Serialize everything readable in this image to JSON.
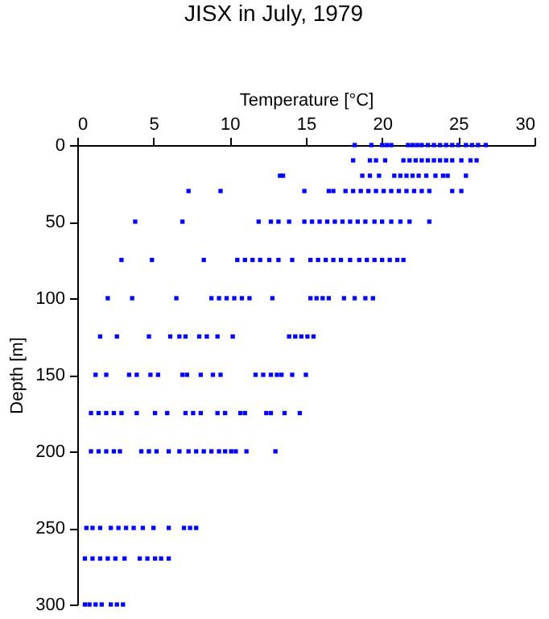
{
  "chart_data": {
    "type": "scatter",
    "title": "JISX in July, 1979",
    "xlabel": "Temperature [°C]",
    "ylabel": "Depth [m]",
    "xlim": [
      0,
      30
    ],
    "xticks": [
      0,
      5,
      10,
      15,
      20,
      25,
      30
    ],
    "ylim": [
      300,
      0
    ],
    "yticks": [
      0,
      50,
      100,
      150,
      200,
      250,
      300
    ],
    "marker": "square",
    "grid": false,
    "series": [
      {
        "color": "#0000ff",
        "x": [
          18.2,
          19.3,
          20.0,
          20.3,
          20.6,
          21.7,
          22.0,
          22.3,
          22.6,
          23.0,
          23.4,
          23.8,
          24.2,
          24.6,
          25.0,
          25.5,
          25.9,
          26.3,
          26.8,
          18.1,
          19.2,
          19.6,
          20.2,
          21.4,
          21.8,
          22.2,
          22.6,
          23.0,
          23.4,
          23.8,
          24.2,
          24.6,
          25.2,
          25.8,
          26.2,
          13.3,
          13.5,
          18.7,
          19.2,
          19.8,
          20.8,
          21.2,
          21.6,
          22.0,
          22.4,
          22.9,
          23.5,
          24.0,
          24.3,
          25.5,
          7.3,
          9.4,
          14.9,
          16.5,
          16.8,
          17.6,
          18.1,
          18.6,
          19.1,
          19.6,
          20.1,
          20.6,
          21.1,
          21.6,
          22.1,
          22.6,
          23.1,
          24.6,
          25.2,
          3.8,
          6.9,
          11.9,
          12.7,
          13.2,
          13.9,
          14.9,
          15.4,
          15.9,
          16.4,
          16.9,
          17.4,
          17.9,
          18.4,
          18.9,
          19.5,
          20.0,
          20.6,
          21.2,
          21.8,
          23.1,
          2.9,
          4.9,
          8.3,
          10.5,
          11.0,
          11.5,
          12.0,
          12.6,
          13.2,
          14.1,
          15.3,
          15.8,
          16.3,
          16.8,
          17.3,
          17.9,
          18.5,
          19.0,
          19.5,
          20.0,
          20.5,
          21.0,
          21.4,
          2.0,
          3.6,
          6.5,
          8.8,
          9.3,
          9.8,
          10.3,
          10.8,
          11.3,
          12.8,
          15.3,
          15.7,
          16.1,
          16.5,
          17.5,
          18.2,
          18.9,
          19.4,
          1.5,
          2.6,
          4.7,
          6.1,
          6.7,
          7.1,
          8.0,
          8.5,
          9.2,
          10.2,
          13.9,
          14.3,
          14.7,
          15.1,
          15.5,
          1.2,
          1.9,
          3.4,
          3.9,
          4.8,
          5.3,
          6.9,
          7.2,
          8.1,
          8.9,
          9.4,
          11.7,
          12.2,
          12.7,
          13.1,
          13.4,
          14.1,
          15.0,
          0.9,
          1.4,
          1.9,
          2.4,
          2.9,
          3.9,
          5.1,
          5.9,
          7.1,
          7.6,
          8.1,
          9.2,
          9.7,
          10.7,
          11.0,
          12.4,
          12.7,
          13.6,
          14.6,
          0.9,
          1.4,
          1.9,
          2.4,
          2.8,
          4.2,
          4.7,
          5.2,
          6.0,
          6.7,
          7.3,
          7.8,
          8.3,
          8.8,
          9.3,
          9.7,
          10.1,
          10.4,
          11.1,
          13.0,
          0.6,
          1.0,
          1.5,
          2.2,
          2.7,
          3.2,
          3.7,
          4.3,
          5.0,
          6.0,
          7.0,
          7.4,
          7.8,
          0.5,
          1.0,
          1.5,
          2.0,
          2.5,
          3.1,
          4.1,
          4.6,
          5.1,
          5.5,
          6.0,
          0.5,
          0.8,
          1.2,
          1.6,
          2.2,
          2.6,
          3.0
        ],
        "values": [
          0,
          0,
          0,
          0,
          0,
          0,
          0,
          0,
          0,
          0,
          0,
          0,
          0,
          0,
          0,
          0,
          0,
          0,
          0,
          10,
          10,
          10,
          10,
          10,
          10,
          10,
          10,
          10,
          10,
          10,
          10,
          10,
          10,
          10,
          10,
          20,
          20,
          20,
          20,
          20,
          20,
          20,
          20,
          20,
          20,
          20,
          20,
          20,
          20,
          20,
          30,
          30,
          30,
          30,
          30,
          30,
          30,
          30,
          30,
          30,
          30,
          30,
          30,
          30,
          30,
          30,
          30,
          30,
          30,
          50,
          50,
          50,
          50,
          50,
          50,
          50,
          50,
          50,
          50,
          50,
          50,
          50,
          50,
          50,
          50,
          50,
          50,
          50,
          50,
          50,
          75,
          75,
          75,
          75,
          75,
          75,
          75,
          75,
          75,
          75,
          75,
          75,
          75,
          75,
          75,
          75,
          75,
          75,
          75,
          75,
          75,
          75,
          75,
          100,
          100,
          100,
          100,
          100,
          100,
          100,
          100,
          100,
          100,
          100,
          100,
          100,
          100,
          100,
          100,
          100,
          100,
          125,
          125,
          125,
          125,
          125,
          125,
          125,
          125,
          125,
          125,
          125,
          125,
          125,
          125,
          125,
          150,
          150,
          150,
          150,
          150,
          150,
          150,
          150,
          150,
          150,
          150,
          150,
          150,
          150,
          150,
          150,
          150,
          150,
          175,
          175,
          175,
          175,
          175,
          175,
          175,
          175,
          175,
          175,
          175,
          175,
          175,
          175,
          175,
          175,
          175,
          175,
          175,
          200,
          200,
          200,
          200,
          200,
          200,
          200,
          200,
          200,
          200,
          200,
          200,
          200,
          200,
          200,
          200,
          200,
          200,
          200,
          200,
          250,
          250,
          250,
          250,
          250,
          250,
          250,
          250,
          250,
          250,
          250,
          250,
          250,
          270,
          270,
          270,
          270,
          270,
          270,
          270,
          270,
          270,
          270,
          270,
          300,
          300,
          300,
          300,
          300,
          300,
          300
        ]
      }
    ]
  }
}
